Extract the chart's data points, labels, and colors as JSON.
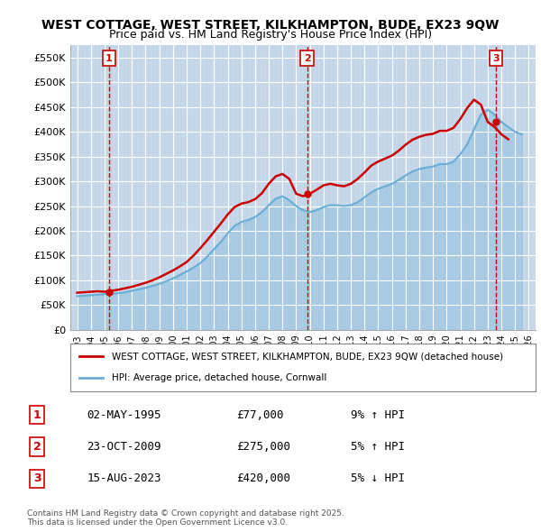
{
  "title": "WEST COTTAGE, WEST STREET, KILKHAMPTON, BUDE, EX23 9QW",
  "subtitle": "Price paid vs. HM Land Registry's House Price Index (HPI)",
  "ylim": [
    0,
    575000
  ],
  "yticks": [
    0,
    50000,
    100000,
    150000,
    200000,
    250000,
    300000,
    350000,
    400000,
    450000,
    500000,
    550000
  ],
  "ytick_labels": [
    "£0",
    "£50K",
    "£100K",
    "£150K",
    "£200K",
    "£250K",
    "£300K",
    "£350K",
    "£400K",
    "£450K",
    "£500K",
    "£550K"
  ],
  "xlim_start": 1992.5,
  "xlim_end": 2026.5,
  "xticks": [
    1993,
    1994,
    1995,
    1996,
    1997,
    1998,
    1999,
    2000,
    2001,
    2002,
    2003,
    2004,
    2005,
    2006,
    2007,
    2008,
    2009,
    2010,
    2011,
    2012,
    2013,
    2014,
    2015,
    2016,
    2017,
    2018,
    2019,
    2020,
    2021,
    2022,
    2023,
    2024,
    2025,
    2026
  ],
  "bg_color": "#dce9f5",
  "hatch_color": "#c0d4e8",
  "grid_color": "#ffffff",
  "sale_color": "#cc0000",
  "hpi_color": "#6baed6",
  "sale_label": "WEST COTTAGE, WEST STREET, KILKHAMPTON, BUDE, EX23 9QW (detached house)",
  "hpi_label": "HPI: Average price, detached house, Cornwall",
  "transactions": [
    {
      "num": 1,
      "date": "02-MAY-1995",
      "price": 77000,
      "pct": "9%",
      "dir": "↑",
      "year": 1995.33
    },
    {
      "num": 2,
      "date": "23-OCT-2009",
      "price": 275000,
      "pct": "5%",
      "dir": "↑",
      "year": 2009.81
    },
    {
      "num": 3,
      "date": "15-AUG-2023",
      "price": 420000,
      "pct": "5%",
      "dir": "↓",
      "year": 2023.62
    }
  ],
  "footnote": "Contains HM Land Registry data © Crown copyright and database right 2025.\nThis data is licensed under the Open Government Licence v3.0.",
  "hpi_years": [
    1993,
    1993.5,
    1994,
    1994.5,
    1995,
    1995.5,
    1996,
    1996.5,
    1997,
    1997.5,
    1998,
    1998.5,
    1999,
    1999.5,
    2000,
    2000.5,
    2001,
    2001.5,
    2002,
    2002.5,
    2003,
    2003.5,
    2004,
    2004.5,
    2005,
    2005.5,
    2006,
    2006.5,
    2007,
    2007.5,
    2008,
    2008.5,
    2009,
    2009.5,
    2010,
    2010.5,
    2011,
    2011.5,
    2012,
    2012.5,
    2013,
    2013.5,
    2014,
    2014.5,
    2015,
    2015.5,
    2016,
    2016.5,
    2017,
    2017.5,
    2018,
    2018.5,
    2019,
    2019.5,
    2020,
    2020.5,
    2021,
    2021.5,
    2022,
    2022.5,
    2023,
    2023.5,
    2024,
    2024.5,
    2025,
    2025.5
  ],
  "hpi_values": [
    68000,
    69000,
    70000,
    71000,
    72000,
    73000,
    74000,
    76000,
    79000,
    82000,
    85000,
    89000,
    93000,
    98000,
    104000,
    111000,
    118000,
    126000,
    135000,
    148000,
    163000,
    178000,
    195000,
    210000,
    218000,
    222000,
    228000,
    238000,
    252000,
    265000,
    270000,
    262000,
    250000,
    242000,
    238000,
    242000,
    248000,
    252000,
    252000,
    250000,
    252000,
    258000,
    268000,
    278000,
    285000,
    290000,
    295000,
    303000,
    312000,
    320000,
    325000,
    328000,
    330000,
    335000,
    335000,
    340000,
    355000,
    375000,
    405000,
    435000,
    445000,
    435000,
    420000,
    410000,
    400000,
    395000
  ],
  "sale_years": [
    1993,
    1993.5,
    1994,
    1994.5,
    1995,
    1995.5,
    1996,
    1996.5,
    1997,
    1997.5,
    1998,
    1998.5,
    1999,
    1999.5,
    2000,
    2000.5,
    2001,
    2001.5,
    2002,
    2002.5,
    2003,
    2003.5,
    2004,
    2004.5,
    2005,
    2005.5,
    2006,
    2006.5,
    2007,
    2007.5,
    2008,
    2008.5,
    2009,
    2009.5,
    2010,
    2010.5,
    2011,
    2011.5,
    2012,
    2012.5,
    2013,
    2013.5,
    2014,
    2014.5,
    2015,
    2015.5,
    2016,
    2016.5,
    2017,
    2017.5,
    2018,
    2018.5,
    2019,
    2019.5,
    2020,
    2020.5,
    2021,
    2021.5,
    2022,
    2022.5,
    2023,
    2023.5,
    2024,
    2024.5
  ],
  "sale_values": [
    75000,
    76000,
    77000,
    78000,
    77000,
    79000,
    81000,
    84000,
    87000,
    91000,
    95000,
    100000,
    106000,
    113000,
    120000,
    128000,
    137000,
    150000,
    165000,
    181000,
    198000,
    215000,
    233000,
    248000,
    255000,
    258000,
    264000,
    276000,
    295000,
    310000,
    315000,
    305000,
    275000,
    270000,
    275000,
    283000,
    292000,
    295000,
    292000,
    290000,
    295000,
    305000,
    318000,
    332000,
    340000,
    346000,
    352000,
    362000,
    374000,
    384000,
    390000,
    394000,
    396000,
    402000,
    402000,
    408000,
    426000,
    448000,
    465000,
    455000,
    420000,
    410000,
    395000,
    385000
  ]
}
